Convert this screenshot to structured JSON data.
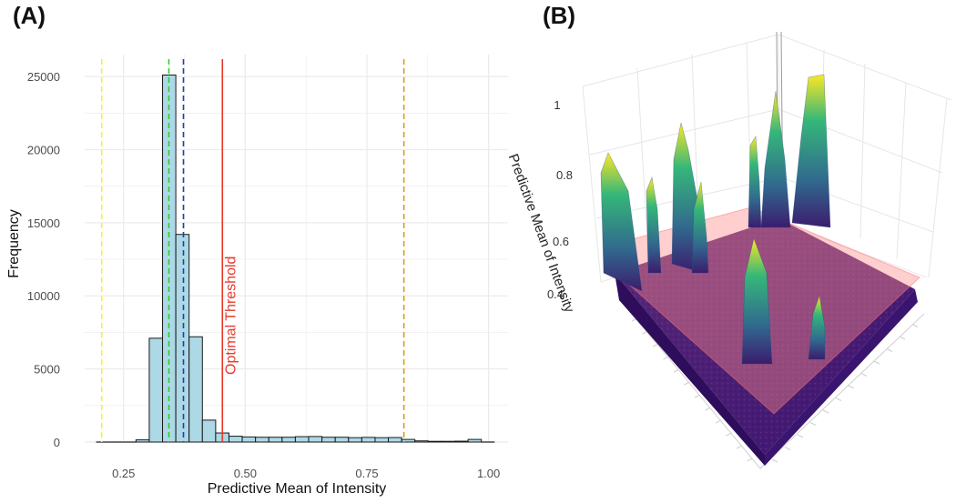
{
  "panels": {
    "a_label": "(A)",
    "b_label": "(B)"
  },
  "chart_data": [
    {
      "type": "bar",
      "subtype": "histogram",
      "title": "",
      "xlabel": "Predictive Mean of Intensity",
      "ylabel": "Frequency",
      "xlim": [
        0.17,
        1.04
      ],
      "ylim": [
        0,
        26500
      ],
      "x_ticks": [
        0.25,
        0.5,
        0.75,
        1.0
      ],
      "x_tick_labels": [
        "0.25",
        "0.50",
        "0.75",
        "1.00"
      ],
      "y_ticks": [
        0,
        5000,
        10000,
        15000,
        20000,
        25000
      ],
      "y_tick_labels": [
        "0",
        "5000",
        "10000",
        "15000",
        "20000",
        "25000"
      ],
      "bin_width": 0.0273,
      "bin_start": 0.1935,
      "counts": [
        0,
        0,
        0,
        150,
        7100,
        25100,
        14200,
        7200,
        1500,
        620,
        400,
        350,
        330,
        330,
        330,
        370,
        380,
        330,
        330,
        300,
        320,
        300,
        310,
        180,
        80,
        50,
        50,
        60,
        180,
        0
      ],
      "fill_color": "#add8e6",
      "edge_color": "#1a1a1a",
      "reference_lines": [
        {
          "x": 0.205,
          "color": "#f5f03a",
          "style": "dashed"
        },
        {
          "x": 0.343,
          "color": "#2ecc2e",
          "style": "dashed"
        },
        {
          "x": 0.373,
          "color": "#1f3fb0",
          "style": "dashed"
        },
        {
          "x": 0.453,
          "color": "#e8392b",
          "style": "solid",
          "label": "Optimal Threshold"
        },
        {
          "x": 0.826,
          "color": "#d4a017",
          "style": "dashed"
        }
      ],
      "grid": true
    },
    {
      "type": "surface3d",
      "zlabel": "Predictive Mean of Intensity",
      "z_ticks": [
        0.4,
        0.6,
        0.8,
        1.0
      ],
      "z_tick_labels": [
        "0.4",
        "0.6",
        "0.8",
        "1"
      ],
      "threshold_plane": 0.453,
      "colorscale": [
        "#440154",
        "#31688e",
        "#35b779",
        "#fde725"
      ],
      "plane_color": "#ff8a8a",
      "peaks": [
        {
          "height": 0.78
        },
        {
          "height": 0.74
        },
        {
          "height": 0.9
        },
        {
          "height": 0.76
        },
        {
          "height": 0.85
        },
        {
          "height": 0.96
        },
        {
          "height": 1.0
        },
        {
          "height": 0.55
        },
        {
          "height": 0.4
        }
      ]
    }
  ]
}
